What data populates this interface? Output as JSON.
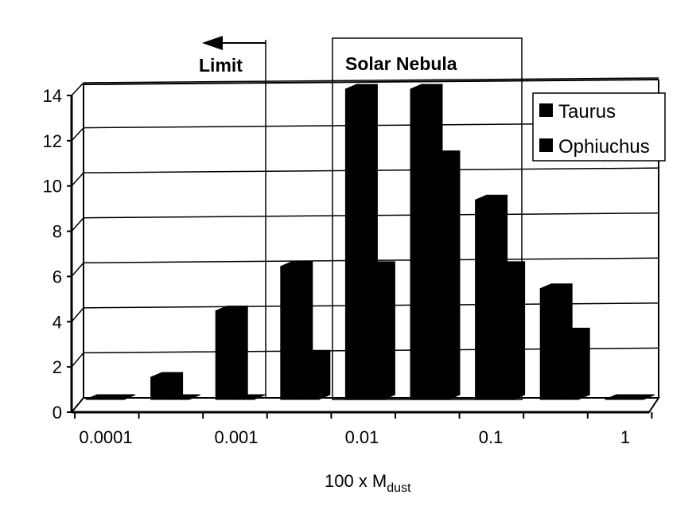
{
  "chart_data": {
    "type": "bar",
    "categories": [
      "0.0001",
      "",
      "0.001",
      "",
      "0.01",
      "",
      "0.1",
      "",
      "1"
    ],
    "x_tick_labels": [
      "0.0001",
      "0.001",
      "0.01",
      "0.1",
      "1"
    ],
    "series": [
      {
        "name": "Taurus",
        "values": [
          0,
          1,
          4,
          6,
          14,
          14,
          9,
          5,
          0
        ]
      },
      {
        "name": "Ophiuchus",
        "values": [
          0,
          0,
          0,
          2,
          6,
          11,
          6,
          3,
          0
        ]
      }
    ],
    "ylim": [
      0,
      14
    ],
    "y_ticks": [
      "0",
      "2",
      "4",
      "6",
      "8",
      "10",
      "12",
      "14"
    ],
    "xlabel": {
      "main": "100 x M",
      "sub": "dust"
    },
    "grid": true,
    "legend_placement": "top-right",
    "annotations": {
      "limit": "Limit",
      "solar_nebula": "Solar Nebula"
    },
    "bar_color": "#000000"
  }
}
